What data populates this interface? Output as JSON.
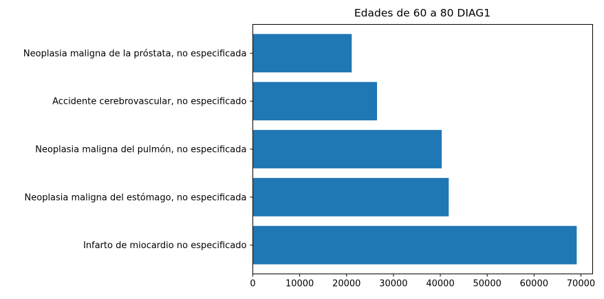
{
  "chart_data": {
    "type": "bar",
    "orientation": "horizontal",
    "title": "Edades de 60 a 80 DIAG1",
    "xlabel": "",
    "ylabel": "",
    "categories": [
      "Infarto de miocardio no especificado",
      "Neoplasia maligna del estómago, no especificada",
      "Neoplasia maligna del pulmón, no especificada",
      "Accidente cerebrovascular, no especificado",
      "Neoplasia maligna de la próstata, no especificada"
    ],
    "values": [
      69100,
      41800,
      40300,
      26500,
      21100
    ],
    "xlim": [
      0,
      72500
    ],
    "xticks": [
      0,
      10000,
      20000,
      30000,
      40000,
      50000,
      60000,
      70000
    ],
    "xtick_labels": [
      "0",
      "10000",
      "20000",
      "30000",
      "40000",
      "50000",
      "60000",
      "70000"
    ],
    "bar_color": "#1f77b4",
    "grid": false,
    "legend": "none"
  }
}
